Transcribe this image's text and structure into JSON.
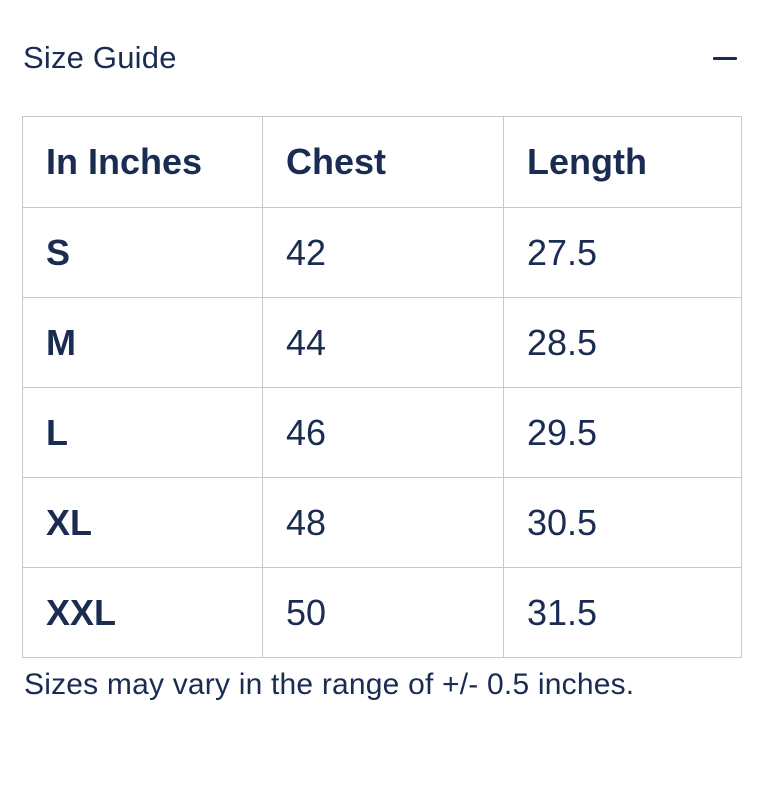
{
  "colors": {
    "text_navy": "#1a2c52",
    "table_border": "#c8c8c8",
    "background": "#ffffff"
  },
  "accordion": {
    "title": "Size Guide",
    "collapse_icon": "minus"
  },
  "size_table": {
    "unit_header": "In Inches",
    "headers": [
      "In Inches",
      "Chest",
      "Length"
    ],
    "rows": [
      {
        "size": "S",
        "chest": "42",
        "length": "27.5"
      },
      {
        "size": "M",
        "chest": "44",
        "length": "28.5"
      },
      {
        "size": "L",
        "chest": "46",
        "length": "29.5"
      },
      {
        "size": "XL",
        "chest": "48",
        "length": "30.5"
      },
      {
        "size": "XXL",
        "chest": "50",
        "length": "31.5"
      }
    ]
  },
  "footnote": "Sizes may vary in the range of +/- 0.5 inches."
}
